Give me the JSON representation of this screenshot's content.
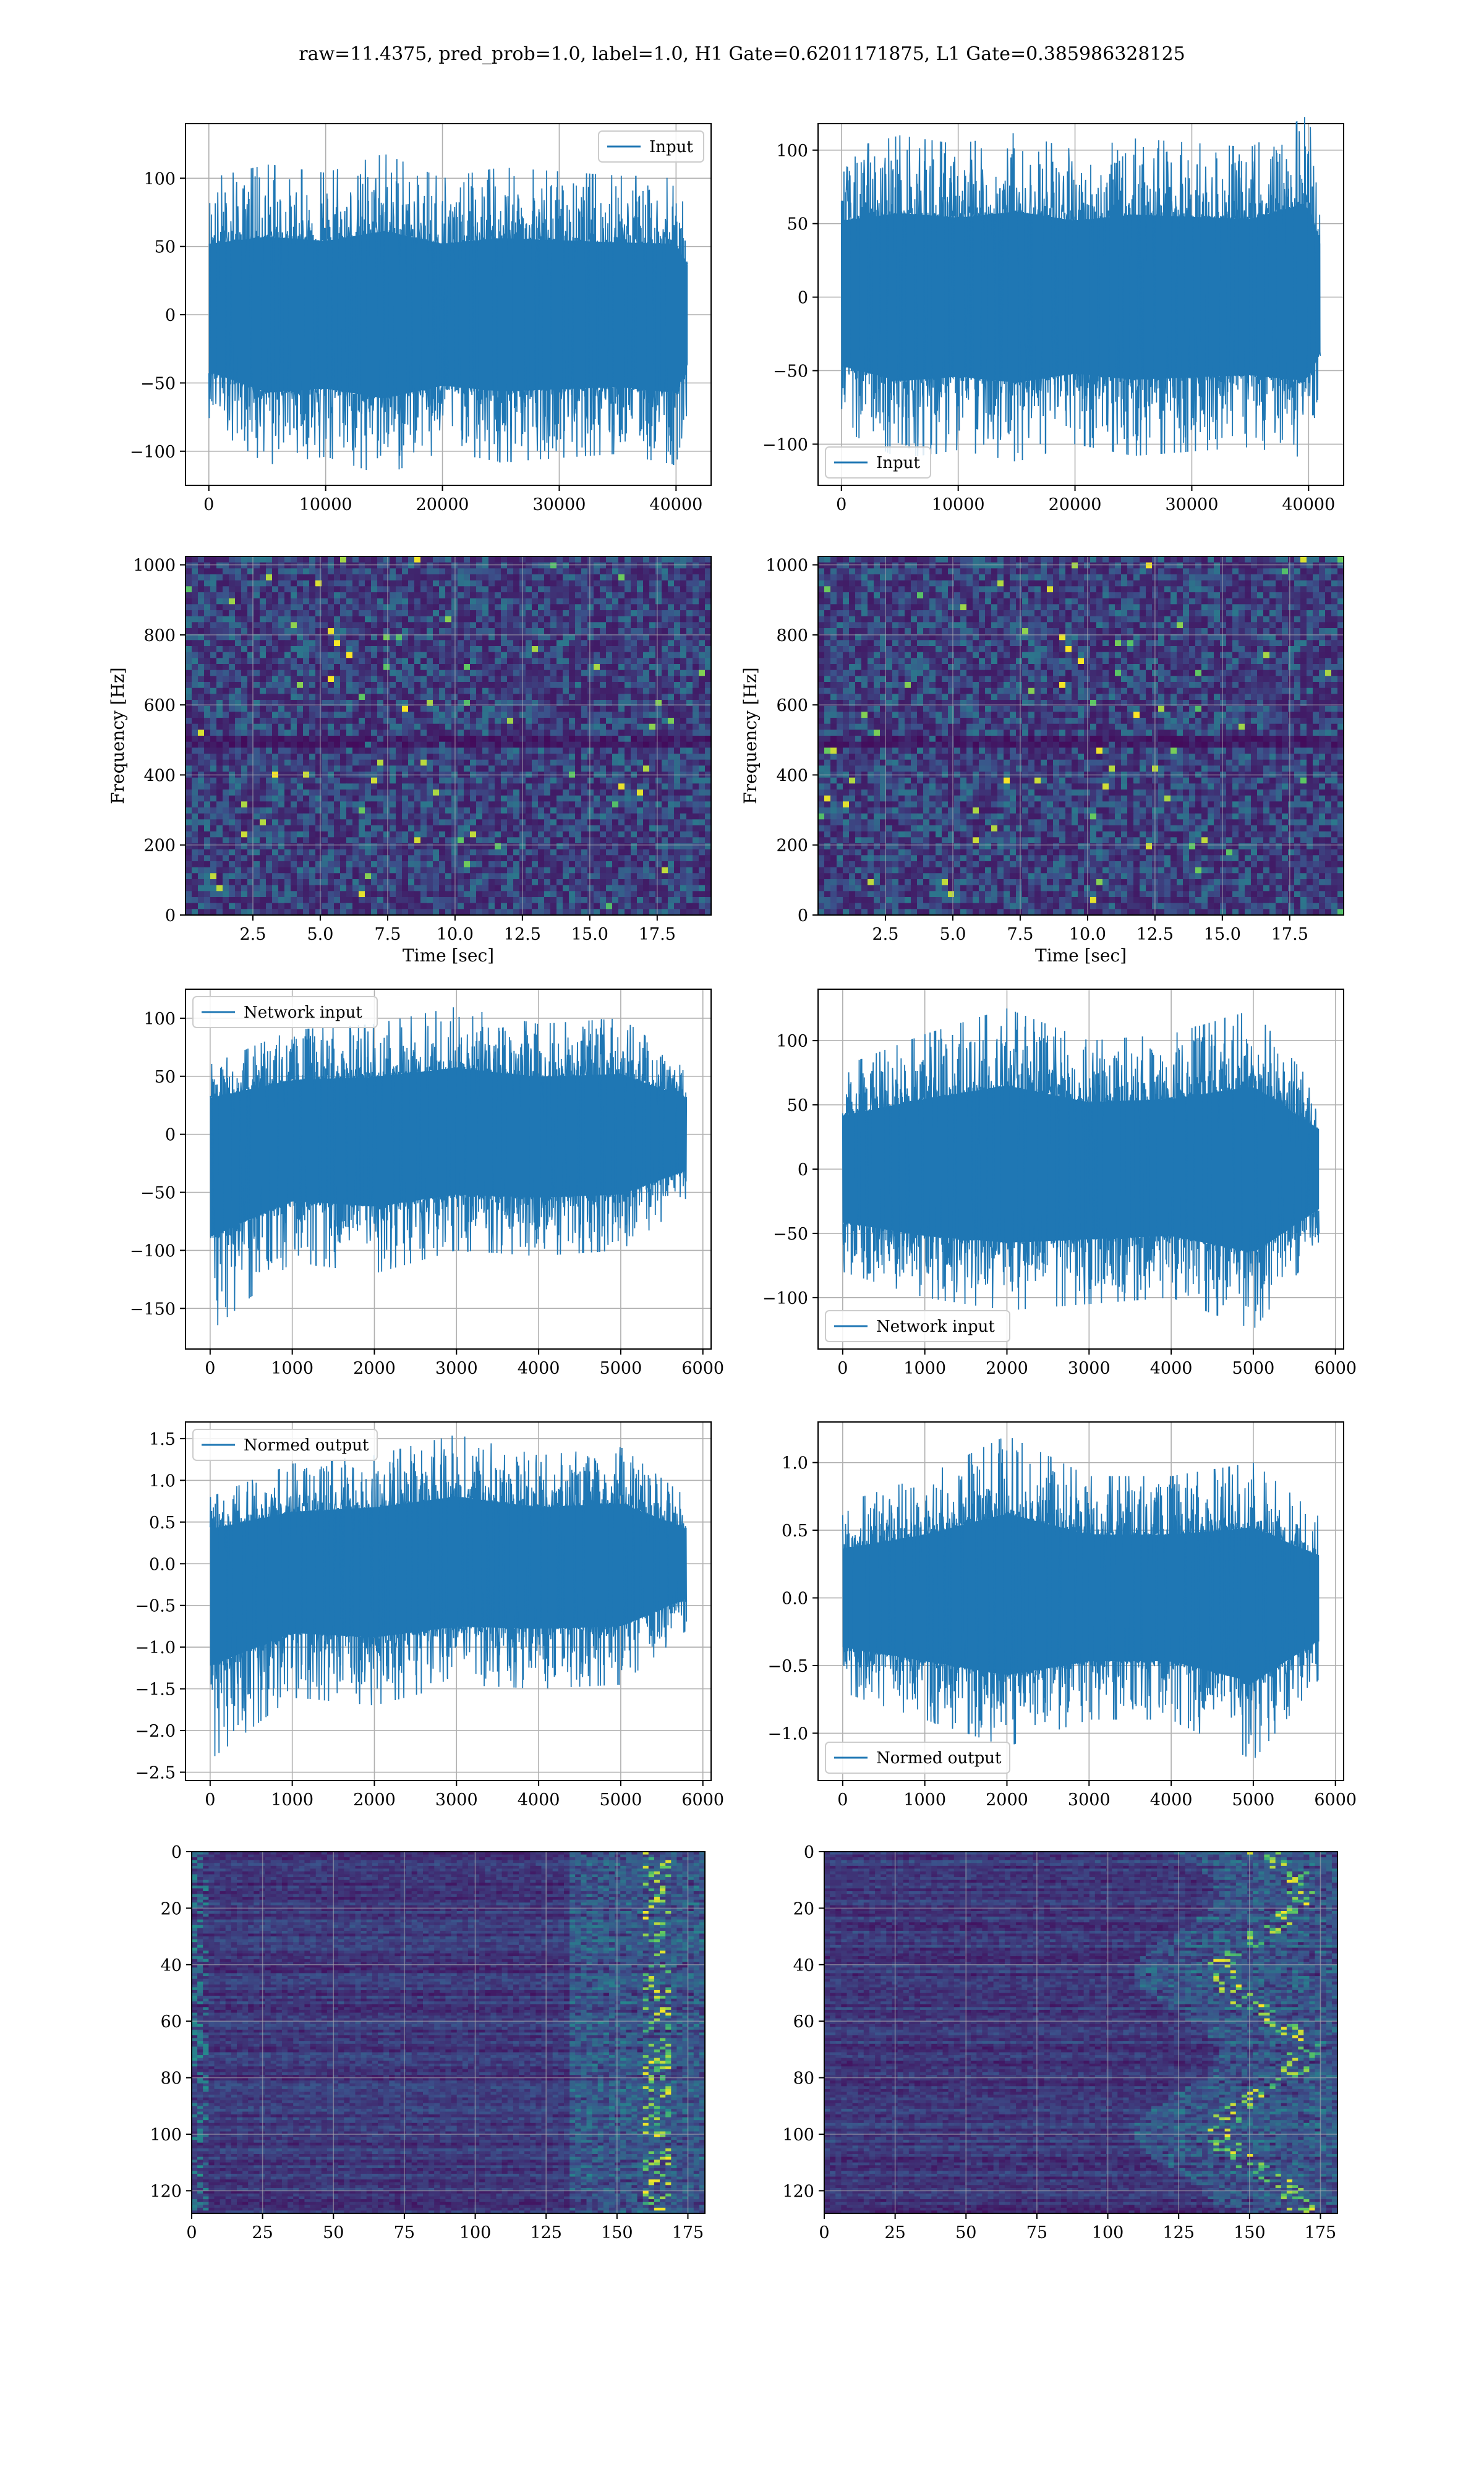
{
  "figure": {
    "suptitle": "raw=11.4375, pred_prob=1.0, label=1.0, H1 Gate=0.6201171875, L1 Gate=0.385986328125"
  },
  "colors": {
    "line": "#1f77b4",
    "grid": "#b0b0b0",
    "heatmap_low": "#440154",
    "heatmap_high": "#fde725"
  },
  "chart_data": [
    {
      "type": "line",
      "panel": "row1-left",
      "x": [
        0,
        5000,
        10000,
        15000,
        20000,
        25000,
        30000,
        35000,
        40000,
        41000
      ],
      "series": [
        {
          "name": "Input",
          "envelope_hi": [
            100,
            110,
            104,
            118,
            100,
            108,
            105,
            102,
            100,
            70
          ],
          "envelope_lo": [
            -80,
            -110,
            -104,
            -118,
            -100,
            -108,
            -105,
            -102,
            -110,
            -70
          ]
        }
      ],
      "xlim": [
        -2000,
        43000
      ],
      "ylim": [
        -125,
        140
      ],
      "xticks": [
        "0",
        "10000",
        "20000",
        "30000",
        "40000"
      ],
      "yticks": [
        "−100",
        "−50",
        "0",
        "50",
        "100"
      ],
      "legend": "upper right",
      "grid": true
    },
    {
      "type": "line",
      "panel": "row1-right",
      "x": [
        0,
        5000,
        10000,
        15000,
        20000,
        25000,
        30000,
        35000,
        40000,
        41000
      ],
      "series": [
        {
          "name": "Input",
          "envelope_hi": [
            100,
            110,
            104,
            112,
            100,
            108,
            105,
            102,
            124,
            70
          ],
          "envelope_lo": [
            -90,
            -110,
            -104,
            -112,
            -100,
            -108,
            -105,
            -102,
            -110,
            -70
          ]
        }
      ],
      "xlim": [
        -2000,
        43000
      ],
      "ylim": [
        -128,
        118
      ],
      "xticks": [
        "0",
        "10000",
        "20000",
        "30000",
        "40000"
      ],
      "yticks": [
        "−100",
        "−50",
        "0",
        "50",
        "100"
      ],
      "legend": "lower left",
      "grid": true
    },
    {
      "type": "heatmap",
      "panel": "row2-left",
      "xlabel": "Time [sec]",
      "ylabel": "Frequency [Hz]",
      "xlim": [
        0,
        19.5
      ],
      "ylim": [
        0,
        1024
      ],
      "xticks": [
        "2.5",
        "5.0",
        "7.5",
        "10.0",
        "12.5",
        "15.0",
        "17.5"
      ],
      "yticks": [
        "0",
        "200",
        "400",
        "600",
        "800",
        "1000"
      ],
      "grid": true
    },
    {
      "type": "heatmap",
      "panel": "row2-right",
      "xlabel": "Time [sec]",
      "ylabel": "Frequency [Hz]",
      "xlim": [
        0,
        19.5
      ],
      "ylim": [
        0,
        1024
      ],
      "xticks": [
        "2.5",
        "5.0",
        "7.5",
        "10.0",
        "12.5",
        "15.0",
        "17.5"
      ],
      "yticks": [
        "0",
        "200",
        "400",
        "600",
        "800",
        "1000"
      ],
      "grid": true
    },
    {
      "type": "line",
      "panel": "row3-left",
      "x": [
        0,
        1000,
        2000,
        3000,
        4000,
        5000,
        5800
      ],
      "series": [
        {
          "name": "Network input",
          "envelope_hi": [
            60,
            90,
            95,
            110,
            95,
            100,
            60
          ],
          "envelope_lo": [
            -170,
            -110,
            -120,
            -100,
            -105,
            -100,
            -60
          ]
        }
      ],
      "xlim": [
        -300,
        6100
      ],
      "ylim": [
        -185,
        125
      ],
      "xticks": [
        "0",
        "1000",
        "2000",
        "3000",
        "4000",
        "5000",
        "6000"
      ],
      "yticks": [
        "−150",
        "−100",
        "−50",
        "0",
        "50",
        "100"
      ],
      "legend": "upper left",
      "grid": true
    },
    {
      "type": "line",
      "panel": "row3-right",
      "x": [
        0,
        1000,
        2000,
        3000,
        4000,
        5000,
        5800
      ],
      "series": [
        {
          "name": "Network input",
          "envelope_hi": [
            80,
            105,
            125,
            100,
            105,
            124,
            60
          ],
          "envelope_lo": [
            -80,
            -100,
            -110,
            -105,
            -100,
            -125,
            -60
          ]
        }
      ],
      "xlim": [
        -300,
        6100
      ],
      "ylim": [
        -140,
        140
      ],
      "xticks": [
        "0",
        "1000",
        "2000",
        "3000",
        "4000",
        "5000",
        "6000"
      ],
      "yticks": [
        "−100",
        "−50",
        "0",
        "50",
        "100"
      ],
      "legend": "lower left",
      "grid": true
    },
    {
      "type": "line",
      "panel": "row4-left",
      "x": [
        0,
        1000,
        2000,
        3000,
        4000,
        5000,
        5800
      ],
      "series": [
        {
          "name": "Normed output",
          "envelope_hi": [
            0.8,
            1.2,
            1.3,
            1.55,
            1.3,
            1.4,
            0.8
          ],
          "envelope_lo": [
            -2.35,
            -1.6,
            -1.7,
            -1.45,
            -1.5,
            -1.45,
            -0.8
          ]
        }
      ],
      "xlim": [
        -300,
        6100
      ],
      "ylim": [
        -2.6,
        1.7
      ],
      "xticks": [
        "0",
        "1000",
        "2000",
        "3000",
        "4000",
        "5000",
        "6000"
      ],
      "yticks": [
        "−2.5",
        "−2.0",
        "−1.5",
        "−1.0",
        "−0.5",
        "0.0",
        "0.5",
        "1.0",
        "1.5"
      ],
      "legend": "upper left",
      "grid": true
    },
    {
      "type": "line",
      "panel": "row4-right",
      "x": [
        0,
        1000,
        2000,
        3000,
        4000,
        5000,
        5800
      ],
      "series": [
        {
          "name": "Normed output",
          "envelope_hi": [
            0.7,
            0.9,
            1.2,
            0.9,
            0.9,
            1.0,
            0.6
          ],
          "envelope_lo": [
            -0.7,
            -0.9,
            -1.1,
            -0.9,
            -0.9,
            -1.2,
            -0.6
          ]
        }
      ],
      "xlim": [
        -300,
        6100
      ],
      "ylim": [
        -1.35,
        1.3
      ],
      "xticks": [
        "0",
        "1000",
        "2000",
        "3000",
        "4000",
        "5000",
        "6000"
      ],
      "yticks": [
        "−1.0",
        "−0.5",
        "0.0",
        "0.5",
        "1.0"
      ],
      "legend": "lower left",
      "grid": true
    },
    {
      "type": "heatmap",
      "panel": "row5-left",
      "xlim": [
        0,
        181
      ],
      "ylim": [
        128,
        0
      ],
      "xticks": [
        "0",
        "25",
        "50",
        "75",
        "100",
        "125",
        "150",
        "175"
      ],
      "yticks": [
        "0",
        "20",
        "40",
        "60",
        "80",
        "100",
        "120"
      ],
      "grid": true
    },
    {
      "type": "heatmap",
      "panel": "row5-right",
      "xlim": [
        0,
        181
      ],
      "ylim": [
        128,
        0
      ],
      "xticks": [
        "0",
        "25",
        "50",
        "75",
        "100",
        "125",
        "150",
        "175"
      ],
      "yticks": [
        "0",
        "20",
        "40",
        "60",
        "80",
        "100",
        "120"
      ],
      "grid": true
    }
  ]
}
